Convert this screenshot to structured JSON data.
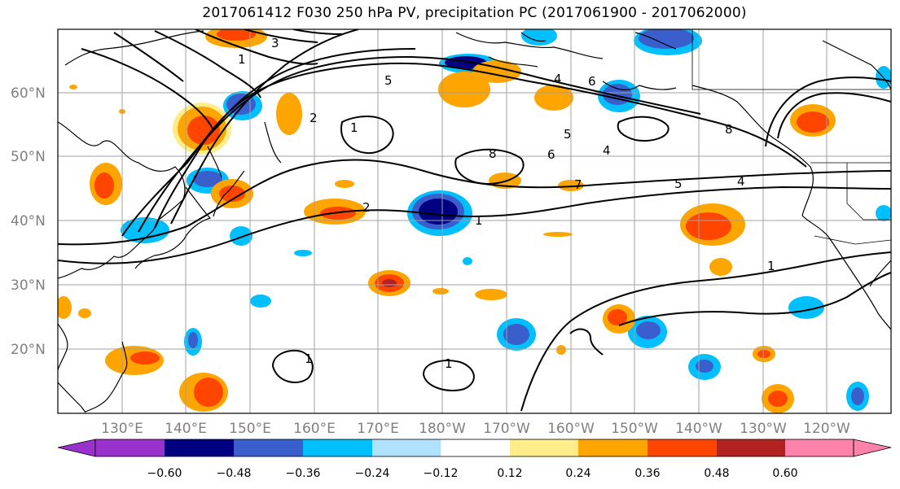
{
  "title": "2017061412 F030 250 hPa PV, precipitation PC (2017061900 - 2017062000)",
  "colors": {
    "fill_levels": [
      "#9932CC",
      "#000080",
      "#3A5FCD",
      "#00BFFF",
      "#B0E2FF",
      "#FFFFFF",
      "#FFEC8B",
      "#FFA500",
      "#FF4500",
      "#B22222",
      "#FF82AB"
    ],
    "contour": "#000000",
    "grid": "#a0a0a0",
    "coast": "#000000"
  },
  "map": {
    "lon_ticks": [
      "130°E",
      "140°E",
      "150°E",
      "160°E",
      "170°E",
      "180°W",
      "170°W",
      "160°W",
      "150°W",
      "140°W",
      "130°W",
      "120°W"
    ],
    "lat_ticks": [
      "60°N",
      "50°N",
      "40°N",
      "30°N",
      "20°N"
    ]
  },
  "colorbar": {
    "ticks": [
      "−0.60",
      "−0.48",
      "−0.36",
      "−0.24",
      "−0.12",
      "0.12",
      "0.24",
      "0.36",
      "0.48",
      "0.60"
    ]
  },
  "contour_labels": [
    "1",
    "2",
    "3",
    "4",
    "5",
    "6",
    "7",
    "8",
    "1",
    "2",
    "4",
    "5",
    "6",
    "8",
    "1",
    "5",
    "4",
    "1",
    "1",
    "1"
  ]
}
